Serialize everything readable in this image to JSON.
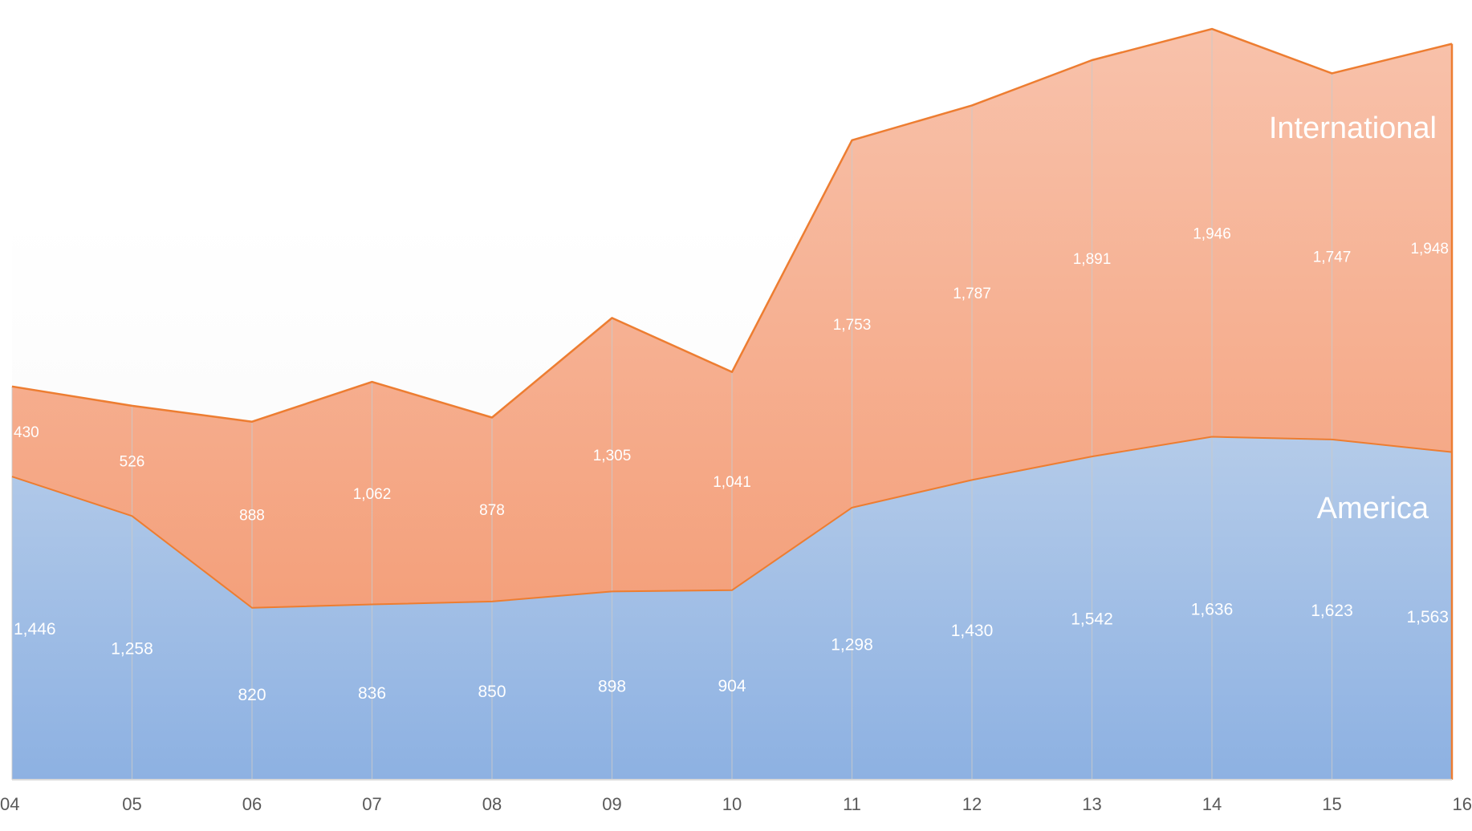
{
  "chart_data": {
    "type": "area",
    "stacked": true,
    "title": "",
    "xlabel": "",
    "ylabel": "",
    "categories": [
      "04",
      "05",
      "06",
      "07",
      "08",
      "09",
      "10",
      "11",
      "12",
      "13",
      "14",
      "15",
      "16"
    ],
    "ylim": [
      0,
      3720
    ],
    "grid": "vertical",
    "legend": "inline",
    "series": [
      {
        "name": "America",
        "color": "#8fb3e3",
        "values": [
          1446,
          1258,
          820,
          836,
          850,
          898,
          904,
          1298,
          1430,
          1542,
          1636,
          1623,
          1563
        ]
      },
      {
        "name": "International",
        "color": "#f4a582",
        "line_color": "#ed7d31",
        "values": [
          430,
          526,
          888,
          1062,
          878,
          1305,
          1041,
          1753,
          1787,
          1891,
          1946,
          1747,
          1948
        ]
      }
    ],
    "data_labels": {
      "America": [
        "1,446",
        "1,258",
        "820",
        "836",
        "850",
        "898",
        "904",
        "1,298",
        "1,430",
        "1,542",
        "1,636",
        "1,623",
        "1,563"
      ],
      "International": [
        "430",
        "526",
        "888",
        "1,062",
        "878",
        "1,305",
        "1,041",
        "1,753",
        "1,787",
        "1,891",
        "1,946",
        "1,747",
        "1,948"
      ]
    }
  }
}
